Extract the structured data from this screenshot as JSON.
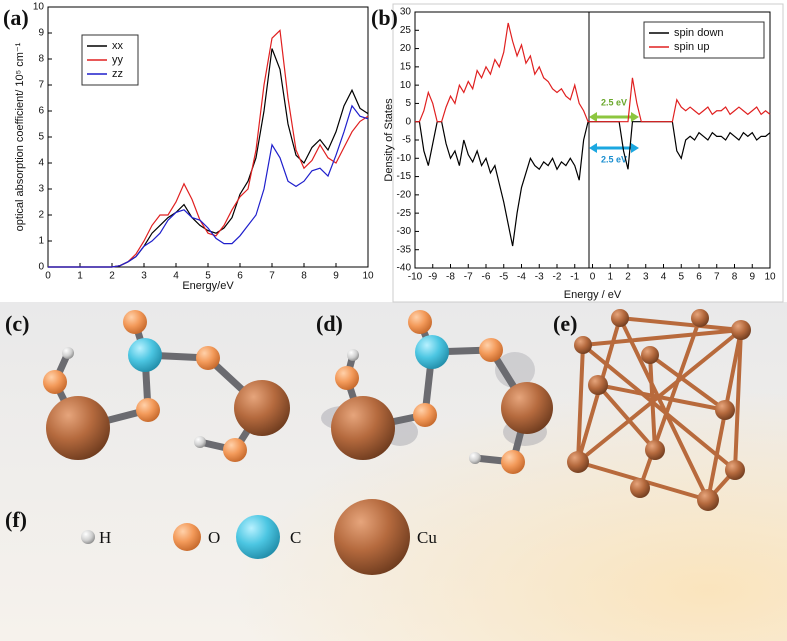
{
  "panel_labels": [
    "(a)",
    "(b)",
    "(c)",
    "(d)",
    "(e)",
    "(f)"
  ],
  "atoms": [
    "H",
    "O",
    "C",
    "Cu"
  ],
  "chart_data": [
    {
      "type": "line",
      "xlabel": "Energy/eV",
      "ylabel": "optical absorption coefficient/ 10⁵ cm⁻¹",
      "xlim": [
        0,
        10
      ],
      "xticks": [
        0,
        1,
        2,
        3,
        4,
        5,
        6,
        7,
        8,
        9,
        10
      ],
      "ylim": [
        0,
        10
      ],
      "yticks": [
        0,
        1,
        2,
        3,
        4,
        5,
        6,
        7,
        8,
        9,
        10
      ],
      "legend": "upper left",
      "x": [
        0,
        0.25,
        0.5,
        0.75,
        1,
        1.25,
        1.5,
        1.75,
        2,
        2.25,
        2.5,
        2.75,
        3,
        3.25,
        3.5,
        3.75,
        4,
        4.25,
        4.5,
        4.75,
        5,
        5.25,
        5.5,
        5.75,
        6,
        6.25,
        6.5,
        6.75,
        7,
        7.25,
        7.5,
        7.75,
        8,
        8.25,
        8.5,
        8.75,
        9,
        9.25,
        9.5,
        9.75,
        10
      ],
      "series": [
        {
          "name": "xx",
          "color": "#000000",
          "values": [
            0,
            0,
            0,
            0,
            0,
            0,
            0,
            0,
            0,
            0.05,
            0.2,
            0.4,
            0.8,
            1.3,
            1.6,
            1.9,
            2.1,
            2.4,
            1.9,
            1.6,
            1.4,
            1.3,
            1.5,
            1.9,
            2.8,
            3.3,
            4.2,
            6.0,
            8.4,
            7.6,
            5.5,
            4.3,
            4.0,
            4.6,
            4.9,
            4.5,
            5.2,
            6.2,
            6.8,
            6.1,
            5.9
          ]
        },
        {
          "name": "yy",
          "color": "#e02020",
          "values": [
            0,
            0,
            0,
            0,
            0,
            0,
            0,
            0,
            0,
            0.05,
            0.2,
            0.5,
            1.0,
            1.6,
            2.0,
            2.0,
            2.5,
            3.2,
            2.6,
            1.8,
            1.3,
            1.2,
            1.6,
            2.2,
            2.7,
            3.0,
            4.5,
            7.0,
            8.8,
            9.1,
            6.5,
            4.5,
            3.8,
            4.1,
            4.7,
            4.2,
            4.0,
            4.6,
            5.2,
            5.6,
            5.8
          ]
        },
        {
          "name": "zz",
          "color": "#1f1fcc",
          "values": [
            0,
            0,
            0,
            0,
            0,
            0,
            0,
            0,
            0,
            0.05,
            0.2,
            0.4,
            0.8,
            1.0,
            1.3,
            1.8,
            2.1,
            2.2,
            1.9,
            1.8,
            1.5,
            1.1,
            0.9,
            0.9,
            1.2,
            1.6,
            2.0,
            3.0,
            4.7,
            4.2,
            3.3,
            3.1,
            3.3,
            3.7,
            3.8,
            3.5,
            4.3,
            5.2,
            6.2,
            5.8,
            5.7
          ]
        }
      ]
    },
    {
      "type": "line",
      "xlabel": "Energy / eV",
      "ylabel": "Density of States",
      "xlim": [
        -10,
        10
      ],
      "xticks": [
        -10,
        -9,
        -8,
        -7,
        -6,
        -5,
        -4,
        -3,
        -2,
        -1,
        0,
        1,
        2,
        3,
        4,
        5,
        6,
        7,
        8,
        9,
        10
      ],
      "ylim": [
        -40,
        30
      ],
      "yticks": [
        -40,
        -35,
        -30,
        -25,
        -20,
        -15,
        -10,
        -5,
        0,
        5,
        10,
        15,
        20,
        25,
        30
      ],
      "legend": "upper right",
      "annotations": [
        "2.5 eV",
        "2.5 eV"
      ],
      "x": [
        -10,
        -9.75,
        -9.5,
        -9.25,
        -9,
        -8.75,
        -8.5,
        -8.25,
        -8,
        -7.75,
        -7.5,
        -7.25,
        -7,
        -6.75,
        -6.5,
        -6.25,
        -6,
        -5.75,
        -5.5,
        -5.25,
        -5,
        -4.75,
        -4.5,
        -4.25,
        -4,
        -3.75,
        -3.5,
        -3.25,
        -3,
        -2.75,
        -2.5,
        -2.25,
        -2,
        -1.75,
        -1.5,
        -1.25,
        -1,
        -0.75,
        -0.5,
        -0.25,
        0,
        0.25,
        0.5,
        0.75,
        1,
        1.25,
        1.5,
        1.75,
        2,
        2.25,
        2.5,
        2.75,
        3,
        3.25,
        3.5,
        3.75,
        4,
        4.25,
        4.5,
        4.75,
        5,
        5.25,
        5.5,
        5.75,
        6,
        6.25,
        6.5,
        6.75,
        7,
        7.25,
        7.5,
        7.75,
        8,
        8.25,
        8.5,
        8.75,
        9,
        9.25,
        9.5,
        9.75,
        10
      ],
      "series": [
        {
          "name": "spin down",
          "color": "#000000",
          "values": [
            0,
            0,
            -8,
            -12,
            -6,
            0,
            0,
            -6,
            -10,
            -8,
            -12,
            -5,
            -9,
            -11,
            -8,
            -12,
            -10,
            -14,
            -12,
            -17,
            -22,
            -28,
            -34,
            -25,
            -18,
            -14,
            -10,
            -12,
            -13,
            -11,
            -12,
            -10,
            -13,
            -11,
            -12,
            -10,
            -12,
            -16,
            -5,
            0,
            0,
            0,
            0,
            0,
            0,
            0,
            0,
            -8,
            -13,
            0,
            0,
            0,
            0,
            0,
            0,
            0,
            0,
            0,
            0,
            -8,
            -10,
            -5,
            -4,
            -5,
            -3,
            -4,
            -5,
            -3,
            -4,
            -4,
            -5,
            -3,
            -4,
            -5,
            -3,
            -4,
            -3,
            -5,
            -4,
            -4,
            -3
          ]
        },
        {
          "name": "spin up",
          "color": "#e02020",
          "values": [
            0,
            0,
            3,
            8,
            5,
            0,
            0,
            4,
            7,
            5,
            10,
            8,
            11,
            9,
            14,
            12,
            15,
            13,
            17,
            15,
            19,
            27,
            22,
            18,
            21,
            16,
            18,
            13,
            15,
            12,
            11,
            9,
            8,
            9,
            7,
            6,
            10,
            5,
            3,
            0,
            0,
            0,
            0,
            0,
            0,
            0,
            0,
            0,
            0,
            12,
            5,
            0,
            0,
            0,
            0,
            0,
            0,
            0,
            0,
            6,
            4,
            3,
            4,
            3,
            2,
            3,
            4,
            2,
            3,
            3,
            4,
            2,
            3,
            4,
            3,
            2,
            3,
            4,
            2,
            3,
            2
          ]
        }
      ]
    }
  ]
}
